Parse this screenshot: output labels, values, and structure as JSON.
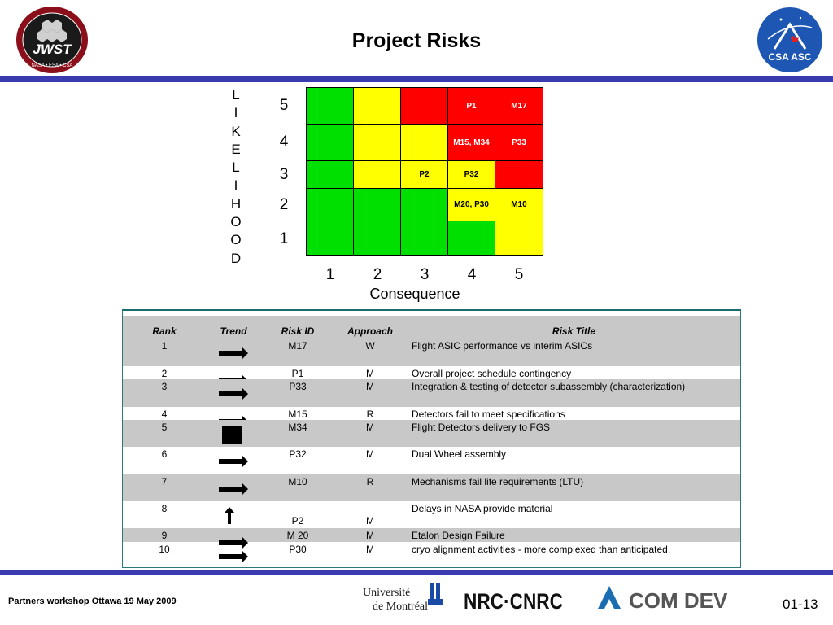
{
  "title": "Project Risks",
  "logos": {
    "left_text": "JWST",
    "left_ring": "James Webb Space Telescope",
    "left_sub": "NASA • ESA • CSA",
    "right_text": "CSA ASC"
  },
  "matrix": {
    "likelihood_letters": [
      "L",
      "I",
      "K",
      "E",
      "L",
      "I",
      "H",
      "O",
      "O",
      "D"
    ],
    "y_labels": [
      "5",
      "4",
      "3",
      "2",
      "1"
    ],
    "x_labels": [
      "1",
      "2",
      "3",
      "4",
      "5"
    ],
    "x_title": "Consequence",
    "rows": [
      [
        {
          "c": "g",
          "t": ""
        },
        {
          "c": "y",
          "t": ""
        },
        {
          "c": "r",
          "t": ""
        },
        {
          "c": "r",
          "t": "P1"
        },
        {
          "c": "r",
          "t": "M17"
        }
      ],
      [
        {
          "c": "g",
          "t": ""
        },
        {
          "c": "y",
          "t": ""
        },
        {
          "c": "y",
          "t": ""
        },
        {
          "c": "r",
          "t": "M15, M34"
        },
        {
          "c": "r",
          "t": "P33"
        }
      ],
      [
        {
          "c": "g",
          "t": ""
        },
        {
          "c": "y",
          "t": ""
        },
        {
          "c": "y",
          "t": "P2"
        },
        {
          "c": "y",
          "t": "P32"
        },
        {
          "c": "r",
          "t": ""
        }
      ],
      [
        {
          "c": "g",
          "t": ""
        },
        {
          "c": "g",
          "t": ""
        },
        {
          "c": "g",
          "t": ""
        },
        {
          "c": "y",
          "t": "M20, P30"
        },
        {
          "c": "y",
          "t": "M10"
        }
      ],
      [
        {
          "c": "g",
          "t": ""
        },
        {
          "c": "g",
          "t": ""
        },
        {
          "c": "g",
          "t": ""
        },
        {
          "c": "g",
          "t": ""
        },
        {
          "c": "y",
          "t": ""
        }
      ]
    ],
    "colors": {
      "green": "#00e000",
      "yellow": "#ffff00",
      "red": "#ff0000"
    }
  },
  "table": {
    "headers": {
      "rank": "Rank",
      "trend": "Trend",
      "risk_id": "Risk ID",
      "approach": "Approach",
      "title": "Risk Title"
    },
    "rows": [
      {
        "rank": "1",
        "trend": "right-arrow-icon",
        "risk_id": "M17",
        "approach": "W",
        "title": "Flight ASIC performance vs interim ASICs"
      },
      {
        "rank": "2",
        "trend": "right-arrow-icon",
        "risk_id": "P1",
        "approach": "M",
        "title": "Overall project schedule contingency"
      },
      {
        "rank": "3",
        "trend": "right-arrow-icon",
        "risk_id": "P33",
        "approach": "M",
        "title": "Integration & testing of detector subassembly (characterization)"
      },
      {
        "rank": "4",
        "trend": "right-arrow-icon",
        "risk_id": "M15",
        "approach": "R",
        "title": "Detectors fail to meet specifications"
      },
      {
        "rank": "5",
        "trend": "square-icon",
        "risk_id": "M34",
        "approach": "M",
        "title": "Flight Detectors delivery to FGS"
      },
      {
        "rank": "6",
        "trend": "right-arrow-icon",
        "risk_id": "P32",
        "approach": "M",
        "title": "Dual Wheel assembly"
      },
      {
        "rank": "7",
        "trend": "right-arrow-icon",
        "risk_id": "M10",
        "approach": "R",
        "title": "Mechanisms fail life requirements (LTU)"
      },
      {
        "rank": "8",
        "trend": "up-arrow-icon",
        "risk_id": "P2",
        "approach": "M",
        "title": "Delays in NASA provide material"
      },
      {
        "rank": "9",
        "trend": "right-arrow-icon",
        "risk_id": "M 20",
        "approach": "M",
        "title": "Etalon Design Failure"
      },
      {
        "rank": "10",
        "trend": "right-arrow-icon",
        "risk_id": "P30",
        "approach": "M",
        "title": "cryo alignment activities - more complexed than anticipated."
      }
    ]
  },
  "footer": {
    "left": "Partners workshop Ottawa 19 May 2009",
    "page": "01-13",
    "logo_udem_1": "Université",
    "logo_udem_2": "de Montréal",
    "logo_nrc": "NRC·CNRC",
    "logo_comdev": "COM DEV"
  }
}
